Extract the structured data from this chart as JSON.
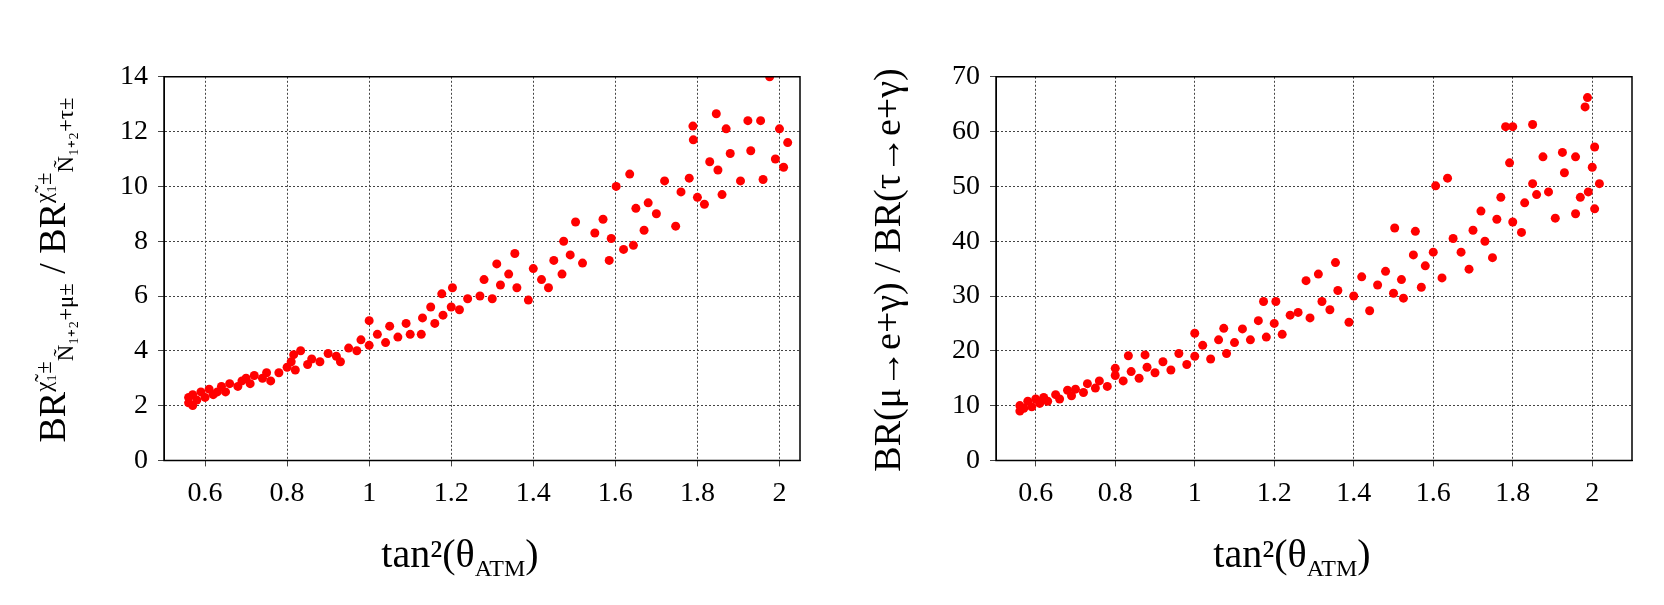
{
  "chart_data": [
    {
      "type": "scatter",
      "xlabel": "tan²(θ$_{ATM}$)",
      "ylabel": "BR$^{χ̃₁±}$$_{Ñ₁₊₂+μ±}$ / BR$^{χ̃₁±}$$_{Ñ₁₊₂+τ±}$",
      "color": "#ff0000",
      "marker": "circle",
      "grid": true,
      "xlim": [
        0.5,
        2.05
      ],
      "xticks": [
        0.6,
        0.8,
        1,
        1.2,
        1.4,
        1.6,
        1.8,
        2
      ],
      "ylim": [
        0,
        14
      ],
      "yticks": [
        0,
        2,
        4,
        6,
        8,
        10,
        12,
        14
      ],
      "x": [
        0.56,
        0.56,
        0.57,
        0.57,
        0.58,
        0.59,
        0.6,
        0.61,
        0.62,
        0.63,
        0.64,
        0.65,
        0.66,
        0.68,
        0.69,
        0.7,
        0.71,
        0.72,
        0.74,
        0.75,
        0.76,
        0.78,
        0.8,
        0.81,
        0.82,
        0.816,
        0.833,
        0.85,
        0.86,
        0.88,
        0.9,
        0.92,
        0.93,
        0.95,
        0.97,
        0.98,
        1.0,
        1.0,
        1.02,
        1.04,
        1.05,
        1.07,
        1.09,
        1.1,
        1.127,
        1.13,
        1.15,
        1.16,
        1.177,
        1.18,
        1.2,
        1.203,
        1.22,
        1.24,
        1.27,
        1.28,
        1.3,
        1.311,
        1.32,
        1.34,
        1.355,
        1.36,
        1.388,
        1.4,
        1.42,
        1.437,
        1.45,
        1.47,
        1.474,
        1.49,
        1.503,
        1.52,
        1.55,
        1.57,
        1.585,
        1.59,
        1.602,
        1.62,
        1.635,
        1.644,
        1.65,
        1.67,
        1.68,
        1.7,
        1.72,
        1.747,
        1.76,
        1.78,
        1.789,
        1.79,
        1.8,
        1.817,
        1.83,
        1.846,
        1.85,
        1.86,
        1.87,
        1.88,
        1.905,
        1.923,
        1.93,
        1.954,
        1.96,
        1.976,
        1.99,
        2.0,
        2.02,
        2.01
      ],
      "values": [
        2.1,
        2.3,
        2.0,
        2.4,
        2.2,
        2.5,
        2.3,
        2.6,
        2.4,
        2.5,
        2.7,
        2.5,
        2.8,
        2.7,
        2.9,
        3.0,
        2.8,
        3.1,
        3.0,
        3.2,
        2.9,
        3.2,
        3.4,
        3.6,
        3.3,
        3.86,
        4.0,
        3.5,
        3.7,
        3.6,
        3.9,
        3.8,
        3.6,
        4.1,
        4.0,
        4.4,
        4.2,
        5.1,
        4.6,
        4.3,
        4.9,
        4.5,
        5.0,
        4.6,
        4.6,
        5.2,
        5.6,
        5.0,
        6.08,
        5.3,
        5.6,
        6.3,
        5.5,
        5.9,
        6.0,
        6.6,
        5.9,
        7.17,
        6.4,
        6.8,
        7.55,
        6.3,
        5.85,
        7.0,
        6.6,
        6.3,
        7.3,
        6.8,
        8.0,
        7.5,
        8.7,
        7.2,
        8.3,
        8.8,
        7.3,
        8.1,
        10.0,
        7.7,
        10.45,
        7.85,
        9.2,
        8.4,
        9.4,
        9.0,
        10.2,
        8.55,
        9.8,
        10.3,
        12.2,
        11.7,
        9.6,
        9.35,
        10.9,
        12.65,
        10.6,
        9.7,
        12.1,
        11.2,
        10.2,
        12.4,
        11.3,
        12.4,
        10.25,
        14.0,
        11.0,
        12.1,
        11.6,
        10.7
      ]
    },
    {
      "type": "scatter",
      "xlabel": "tan²(θ$_{ATM}$)",
      "ylabel": "BR(μ→e+γ) / BR(τ→e+γ)",
      "color": "#ff0000",
      "marker": "circle",
      "grid": true,
      "xlim": [
        0.5,
        2.1
      ],
      "xticks": [
        0.6,
        0.8,
        1,
        1.2,
        1.4,
        1.6,
        1.8,
        2
      ],
      "ylim": [
        0,
        70
      ],
      "yticks": [
        0,
        10,
        20,
        30,
        40,
        50,
        60,
        70
      ],
      "x": [
        0.56,
        0.56,
        0.57,
        0.58,
        0.59,
        0.6,
        0.61,
        0.62,
        0.63,
        0.65,
        0.66,
        0.68,
        0.69,
        0.7,
        0.72,
        0.73,
        0.75,
        0.76,
        0.78,
        0.8,
        0.8,
        0.82,
        0.833,
        0.84,
        0.86,
        0.875,
        0.88,
        0.9,
        0.92,
        0.94,
        0.96,
        0.98,
        1.0,
        1.0,
        1.02,
        1.04,
        1.06,
        1.073,
        1.08,
        1.1,
        1.12,
        1.14,
        1.16,
        1.173,
        1.18,
        1.2,
        1.204,
        1.22,
        1.24,
        1.26,
        1.28,
        1.29,
        1.311,
        1.32,
        1.34,
        1.354,
        1.36,
        1.388,
        1.4,
        1.42,
        1.44,
        1.46,
        1.48,
        1.5,
        1.503,
        1.52,
        1.525,
        1.55,
        1.555,
        1.57,
        1.58,
        1.6,
        1.606,
        1.622,
        1.636,
        1.65,
        1.67,
        1.69,
        1.7,
        1.72,
        1.73,
        1.749,
        1.76,
        1.77,
        1.782,
        1.792,
        1.8,
        1.8,
        1.822,
        1.83,
        1.85,
        1.85,
        1.86,
        1.876,
        1.89,
        1.907,
        1.925,
        1.93,
        1.958,
        1.958,
        1.97,
        1.982,
        1.988,
        2.0,
        2.006,
        2.006,
        2.018,
        1.99
      ],
      "values": [
        9.0,
        10.0,
        9.5,
        10.8,
        9.8,
        11.2,
        10.4,
        11.5,
        10.8,
        12.0,
        11.2,
        12.8,
        11.8,
        13.0,
        12.4,
        14.0,
        13.2,
        14.5,
        13.5,
        15.5,
        16.8,
        14.5,
        19.1,
        16.2,
        15.0,
        19.25,
        17.0,
        16.0,
        18.0,
        16.5,
        19.5,
        17.5,
        23.2,
        19.0,
        21.0,
        18.5,
        22.0,
        24.1,
        19.5,
        21.5,
        24.0,
        22.0,
        25.5,
        29.0,
        22.5,
        25.0,
        29.0,
        23.0,
        26.5,
        27.0,
        32.8,
        26.0,
        34.0,
        29.0,
        27.5,
        36.1,
        31.0,
        25.2,
        30.0,
        33.5,
        27.3,
        32.0,
        34.5,
        30.5,
        42.4,
        33.0,
        29.6,
        37.5,
        41.8,
        31.6,
        35.5,
        38.0,
        50.1,
        33.3,
        51.5,
        40.5,
        38.0,
        34.9,
        42.0,
        45.5,
        40.0,
        37.0,
        44.0,
        48.0,
        60.9,
        54.3,
        60.9,
        43.5,
        41.6,
        47.0,
        61.3,
        50.5,
        48.5,
        55.4,
        49.0,
        44.2,
        56.2,
        52.5,
        55.4,
        45.0,
        48.0,
        64.5,
        66.2,
        53.5,
        57.2,
        45.9,
        50.5,
        49.0
      ]
    }
  ]
}
